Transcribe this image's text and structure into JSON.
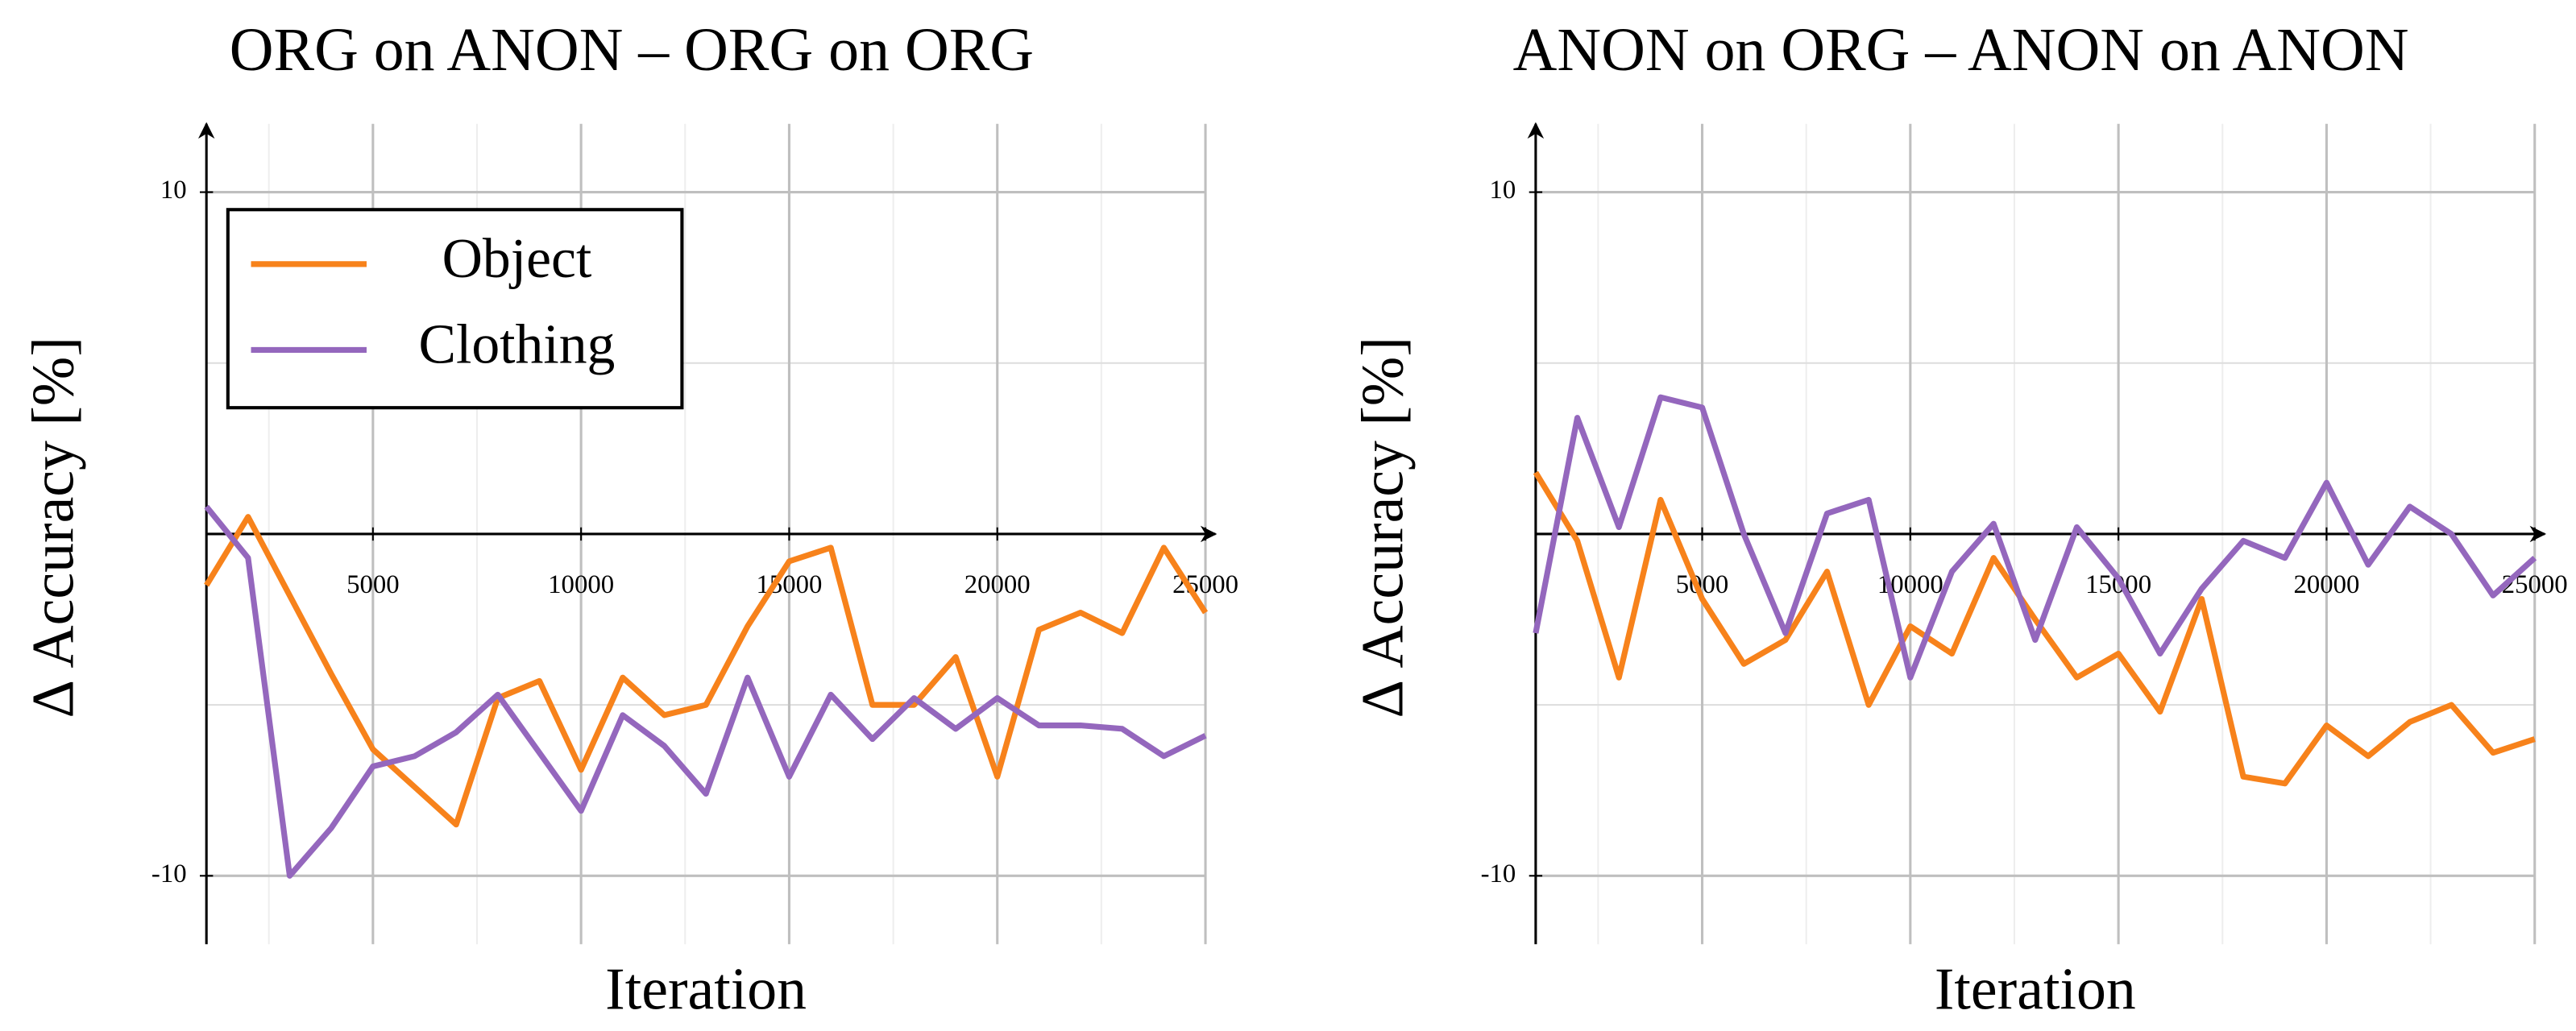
{
  "chart_data": [
    {
      "type": "line",
      "title": "ORG on ANON – ORG on ORG",
      "x_label": "Iteration",
      "y_label": "Δ Accuracy [%]",
      "x": [
        1000,
        2000,
        3000,
        4000,
        5000,
        6000,
        7000,
        8000,
        9000,
        10000,
        11000,
        12000,
        13000,
        14000,
        15000,
        16000,
        17000,
        18000,
        19000,
        20000,
        21000,
        22000,
        23000,
        24000,
        25000
      ],
      "series": [
        {
          "name": "Object",
          "color": "#f7821b",
          "values": [
            -1.5,
            0.5,
            -1.8,
            -4.1,
            -6.3,
            -7.4,
            -8.5,
            -4.8,
            -4.3,
            -6.9,
            -4.2,
            -5.3,
            -5.0,
            -2.7,
            -0.8,
            -0.4,
            -5.0,
            -5.0,
            -3.6,
            -7.1,
            -2.8,
            -2.3,
            -2.9,
            -0.4,
            -2.3
          ]
        },
        {
          "name": "Clothing",
          "color": "#9467bd",
          "values": [
            0.8,
            -0.7,
            -10,
            -8.6,
            -6.8,
            -6.5,
            -5.8,
            -4.7,
            -6.4,
            -8.1,
            -5.3,
            -6.2,
            -7.6,
            -4.2,
            -7.1,
            -4.7,
            -6.0,
            -4.8,
            -5.7,
            -4.8,
            -5.6,
            -5.6,
            -5.7,
            -6.5,
            -5.9
          ]
        }
      ],
      "xlim": [
        1000,
        25000
      ],
      "xticks": [
        5000,
        10000,
        15000,
        20000,
        25000
      ],
      "ylim": [
        -12,
        12
      ],
      "yticks": [
        -10,
        10
      ],
      "grid": true,
      "legend": "upper left"
    },
    {
      "type": "line",
      "title": "ANON on ORG – ANON on ANON",
      "x_label": "Iteration",
      "y_label": "Δ Accuracy [%]",
      "x": [
        1000,
        2000,
        3000,
        4000,
        5000,
        6000,
        7000,
        8000,
        9000,
        10000,
        11000,
        12000,
        13000,
        14000,
        15000,
        16000,
        17000,
        18000,
        19000,
        20000,
        21000,
        22000,
        23000,
        24000,
        25000
      ],
      "series": [
        {
          "color": "#f7821b",
          "values": [
            1.8,
            -0.2,
            -4.2,
            1.0,
            -1.9,
            -3.8,
            -3.1,
            -1.1,
            -5.0,
            -2.7,
            -3.5,
            -0.7,
            -2.5,
            -4.2,
            -3.5,
            -5.2,
            -1.9,
            -7.1,
            -7.3,
            -5.6,
            -6.5,
            -5.5,
            -5.0,
            -6.4,
            -6.0
          ]
        },
        {
          "color": "#9467bd",
          "values": [
            -2.9,
            3.4,
            0.2,
            4.0,
            3.7,
            0.0,
            -2.9,
            0.6,
            1.0,
            -4.2,
            -1.1,
            0.3,
            -3.1,
            0.2,
            -1.3,
            -3.5,
            -1.6,
            -0.2,
            -0.7,
            1.5,
            -0.9,
            0.8,
            0.0,
            -1.8,
            -0.7
          ]
        }
      ],
      "xlim": [
        1000,
        25000
      ],
      "xticks": [
        5000,
        10000,
        15000,
        20000,
        25000
      ],
      "ylim": [
        -12,
        12
      ],
      "yticks": [
        -10,
        10
      ],
      "grid": true
    }
  ]
}
